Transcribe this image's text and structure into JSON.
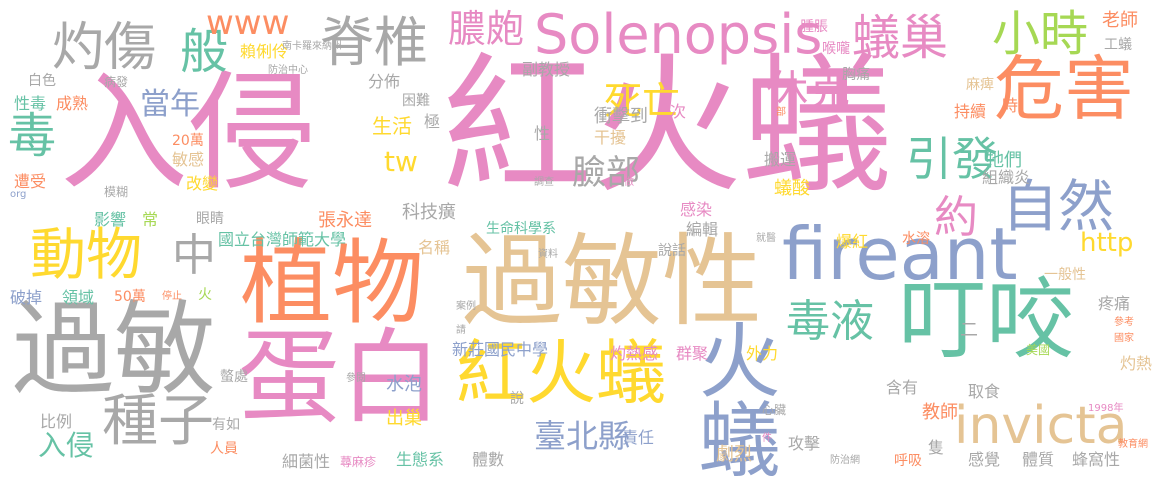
{
  "palette": {
    "pink": "#e78ac3",
    "gray": "#a8a8a8",
    "orange": "#fc8d62",
    "blue": "#8da0cb",
    "green": "#66c2a5",
    "lime": "#a6d854",
    "yellow": "#ffd92f",
    "tan": "#e5c494"
  },
  "words": [
    {
      "text": "入侵",
      "color": "pink"
    },
    {
      "text": "紅火蟻",
      "color": "pink"
    },
    {
      "text": "植物",
      "color": "orange"
    },
    {
      "text": "過敏性",
      "color": "tan"
    },
    {
      "text": "fireant",
      "color": "blue"
    },
    {
      "text": "過敏",
      "color": "gray"
    },
    {
      "text": "蛋白",
      "color": "pink"
    },
    {
      "text": "叮咬",
      "color": "green"
    },
    {
      "text": "火蟻",
      "color": "blue"
    },
    {
      "text": "紅火蟻",
      "color": "yellow"
    },
    {
      "text": "危害",
      "color": "orange"
    },
    {
      "text": "Solenopsis",
      "color": "pink"
    },
    {
      "text": "invicta",
      "color": "tan"
    },
    {
      "text": "動物",
      "color": "yellow"
    },
    {
      "text": "灼傷",
      "color": "gray"
    },
    {
      "text": "脊椎",
      "color": "gray"
    },
    {
      "text": "膿皰",
      "color": "pink"
    },
    {
      "text": "蟻巢",
      "color": "pink"
    },
    {
      "text": "小時",
      "color": "lime"
    },
    {
      "text": "自然",
      "color": "blue"
    },
    {
      "text": "引發",
      "color": "green"
    },
    {
      "text": "毒液",
      "color": "green"
    },
    {
      "text": "種子",
      "color": "gray"
    },
    {
      "text": "般",
      "color": "green"
    },
    {
      "text": "毒",
      "color": "green"
    },
    {
      "text": "www",
      "color": "orange"
    },
    {
      "text": "死亡",
      "color": "yellow"
    },
    {
      "text": "休克",
      "color": "pink"
    },
    {
      "text": "約",
      "color": "pink"
    },
    {
      "text": "臉部",
      "color": "gray"
    },
    {
      "text": "中",
      "color": "gray"
    },
    {
      "text": "當年",
      "color": "blue"
    },
    {
      "text": "http",
      "color": "yellow"
    },
    {
      "text": "tw",
      "color": "yellow"
    },
    {
      "text": "臺北縣",
      "color": "blue"
    },
    {
      "text": "入侵",
      "color": "green"
    },
    {
      "text": "新莊國民中學",
      "color": "blue"
    },
    {
      "text": "國立台灣師範大學",
      "color": "green"
    },
    {
      "text": "生命科學系",
      "color": "green"
    },
    {
      "text": "科技癀",
      "color": "gray"
    },
    {
      "text": "名稱",
      "color": "tan"
    },
    {
      "text": "張永達",
      "color": "orange"
    },
    {
      "text": "生活",
      "color": "yellow"
    },
    {
      "text": "衝擊到",
      "color": "gray"
    },
    {
      "text": "干擾",
      "color": "tan"
    },
    {
      "text": "副教授",
      "color": "gray"
    },
    {
      "text": "分佈",
      "color": "gray"
    },
    {
      "text": "極",
      "color": "gray"
    },
    {
      "text": "困難",
      "color": "gray"
    },
    {
      "text": "賴俐伶",
      "color": "yellow"
    },
    {
      "text": "南卡羅來納州",
      "color": "gray"
    },
    {
      "text": "防治中心",
      "color": "gray"
    },
    {
      "text": "老師",
      "color": "orange"
    },
    {
      "text": "工蟻",
      "color": "gray"
    },
    {
      "text": "腫脹",
      "color": "pink"
    },
    {
      "text": "喉嚨",
      "color": "pink"
    },
    {
      "text": "胸痛",
      "color": "gray"
    },
    {
      "text": "麻痺",
      "color": "tan"
    },
    {
      "text": "時",
      "color": "orange"
    },
    {
      "text": "持續",
      "color": "orange"
    },
    {
      "text": "部",
      "color": "orange"
    },
    {
      "text": "牠們",
      "color": "green"
    },
    {
      "text": "組織炎",
      "color": "gray"
    },
    {
      "text": "蟻酸",
      "color": "yellow"
    },
    {
      "text": "搬運",
      "color": "gray"
    },
    {
      "text": "感染",
      "color": "pink"
    },
    {
      "text": "編輯",
      "color": "gray"
    },
    {
      "text": "就醫",
      "color": "gray"
    },
    {
      "text": "爆紅",
      "color": "yellow"
    },
    {
      "text": "水溶",
      "color": "orange"
    },
    {
      "text": "一般性",
      "color": "tan"
    },
    {
      "text": "疼痛",
      "color": "gray"
    },
    {
      "text": "參考",
      "color": "orange"
    },
    {
      "text": "國家",
      "color": "orange"
    },
    {
      "text": "美國",
      "color": "lime"
    },
    {
      "text": "灼熱",
      "color": "tan"
    },
    {
      "text": "取食",
      "color": "gray"
    },
    {
      "text": "含有",
      "color": "gray"
    },
    {
      "text": "外力",
      "color": "yellow"
    },
    {
      "text": "群聚",
      "color": "pink"
    },
    {
      "text": "灼熱感",
      "color": "pink"
    },
    {
      "text": "說話",
      "color": "gray"
    },
    {
      "text": "資料",
      "color": "gray"
    },
    {
      "text": "案例",
      "color": "gray"
    },
    {
      "text": "請",
      "color": "gray"
    },
    {
      "text": "參閱",
      "color": "gray"
    },
    {
      "text": "調查",
      "color": "gray"
    },
    {
      "text": "做",
      "color": "pink"
    },
    {
      "text": "性",
      "color": "gray"
    },
    {
      "text": "次",
      "color": "pink"
    },
    {
      "text": "水泡",
      "color": "blue"
    },
    {
      "text": "出巢",
      "color": "yellow"
    },
    {
      "text": "說",
      "color": "gray"
    },
    {
      "text": "教師",
      "color": "orange"
    },
    {
      "text": "感覺",
      "color": "gray"
    },
    {
      "text": "體質",
      "color": "gray"
    },
    {
      "text": "蜂窩性",
      "color": "gray"
    },
    {
      "text": "隻",
      "color": "gray"
    },
    {
      "text": "呼吸",
      "color": "orange"
    },
    {
      "text": "攻擊",
      "color": "gray"
    },
    {
      "text": "防治網",
      "color": "gray"
    },
    {
      "text": "劇烈",
      "color": "tan"
    },
    {
      "text": "責任",
      "color": "blue"
    },
    {
      "text": "體數",
      "color": "gray"
    },
    {
      "text": "生態系",
      "color": "green"
    },
    {
      "text": "蕁麻疹",
      "color": "pink"
    },
    {
      "text": "細菌性",
      "color": "gray"
    },
    {
      "text": "人員",
      "color": "orange"
    },
    {
      "text": "有如",
      "color": "gray"
    },
    {
      "text": "比例",
      "color": "gray"
    },
    {
      "text": "螫處",
      "color": "gray"
    },
    {
      "text": "心臟",
      "color": "gray"
    },
    {
      "text": "1998年",
      "color": "pink"
    },
    {
      "text": "教育網",
      "color": "orange"
    },
    {
      "text": "件",
      "color": "pink"
    },
    {
      "text": "二",
      "color": "gray"
    },
    {
      "text": "火",
      "color": "lime"
    },
    {
      "text": "停止",
      "color": "orange"
    },
    {
      "text": "50萬",
      "color": "orange"
    },
    {
      "text": "領域",
      "color": "green"
    },
    {
      "text": "破掉",
      "color": "blue"
    },
    {
      "text": "影響",
      "color": "green"
    },
    {
      "text": "常",
      "color": "lime"
    },
    {
      "text": "眼睛",
      "color": "gray"
    },
    {
      "text": "模糊",
      "color": "gray"
    },
    {
      "text": "org",
      "color": "blue"
    },
    {
      "text": "遭受",
      "color": "orange"
    },
    {
      "text": "改變",
      "color": "yellow"
    },
    {
      "text": "敏感",
      "color": "tan"
    },
    {
      "text": "20萬",
      "color": "orange"
    },
    {
      "text": "性毒",
      "color": "green"
    },
    {
      "text": "成熟",
      "color": "orange"
    },
    {
      "text": "病發",
      "color": "gray"
    },
    {
      "text": "白色",
      "color": "gray"
    }
  ]
}
